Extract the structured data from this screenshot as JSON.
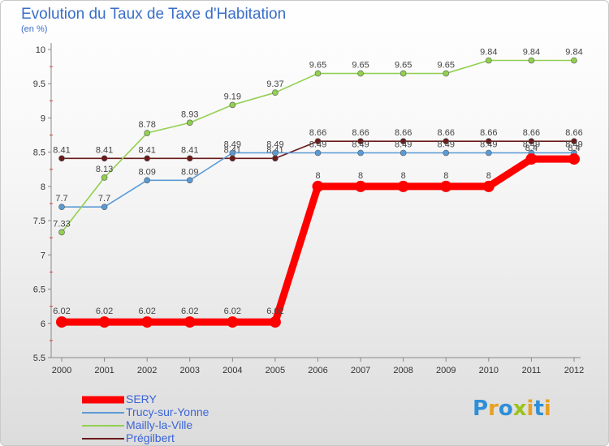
{
  "title": "Evolution du Taux de Taxe d'Habitation",
  "subtitle": "(en %)",
  "brand": {
    "text": "Proxiti",
    "letters": [
      {
        "ch": "P",
        "color": "#2f8fd8"
      },
      {
        "ch": "r",
        "color": "#e8a020"
      },
      {
        "ch": "o",
        "color": "#2f8fd8"
      },
      {
        "ch": "x",
        "color": "#9bc31c"
      },
      {
        "ch": "i",
        "color": "#e8a020"
      },
      {
        "ch": "t",
        "color": "#2f8fd8"
      },
      {
        "ch": "i",
        "color": "#e8a020"
      }
    ]
  },
  "chart_data": {
    "type": "line",
    "x": [
      2000,
      2001,
      2002,
      2003,
      2004,
      2005,
      2006,
      2007,
      2008,
      2009,
      2010,
      2011,
      2012
    ],
    "ylim": [
      5.5,
      10
    ],
    "yticks": [
      5.5,
      6,
      6.5,
      7,
      7.5,
      8,
      8.5,
      9,
      9.5,
      10
    ],
    "grid": false,
    "legend_position": "bottom-left",
    "series": [
      {
        "name": "Prégilbert",
        "color": "#6b1a1a",
        "values": [
          8.41,
          8.41,
          8.41,
          8.41,
          8.41,
          8.41,
          8.66,
          8.66,
          8.66,
          8.66,
          8.66,
          8.66,
          8.66
        ],
        "labels": [
          "8.41",
          "8.41",
          "8.41",
          "8.41",
          "8.41",
          "8.41",
          "8.66",
          "8.66",
          "8.66",
          "8.66",
          "8.66",
          "8.66",
          "8.66"
        ]
      },
      {
        "name": "Trucy-sur-Yonne",
        "color": "#5b9bd5",
        "values": [
          7.7,
          7.7,
          8.09,
          8.09,
          8.49,
          8.49,
          8.49,
          8.49,
          8.49,
          8.49,
          8.49,
          8.49,
          8.49
        ],
        "labels": [
          "7.7",
          "7.7",
          "8.09",
          "8.09",
          "8.49",
          "8.49",
          "8.49",
          "8.49",
          "8.49",
          "8.49",
          "8.49",
          "8.49",
          "8.49"
        ]
      },
      {
        "name": "Mailly-la-Ville",
        "color": "#92d050",
        "values": [
          7.33,
          8.13,
          8.78,
          8.93,
          9.19,
          9.37,
          9.65,
          9.65,
          9.65,
          9.65,
          9.84,
          9.84,
          9.84
        ],
        "labels": [
          "7.33",
          "8.13",
          "8.78",
          "8.93",
          "9.19",
          "9.37",
          "9.65",
          "9.65",
          "9.65",
          "9.65",
          "9.84",
          "9.84",
          "9.84"
        ]
      },
      {
        "name": "SERY",
        "color": "#ff0000",
        "values": [
          6.02,
          6.02,
          6.02,
          6.02,
          6.02,
          6.02,
          8,
          8,
          8,
          8,
          8,
          8.4,
          8.4
        ],
        "labels": [
          "6.02",
          "6.02",
          "6.02",
          "6.02",
          "6.02",
          "6.02",
          "8",
          "8",
          "8",
          "8",
          "8",
          "8.4",
          "8.4"
        ]
      }
    ],
    "legend": [
      {
        "name": "SERY",
        "color": "#ff0000",
        "thick": true
      },
      {
        "name": "Trucy-sur-Yonne",
        "color": "#5b9bd5",
        "thick": false
      },
      {
        "name": "Mailly-la-Ville",
        "color": "#92d050",
        "thick": false
      },
      {
        "name": "Prégilbert",
        "color": "#6b1a1a",
        "thick": false
      }
    ]
  }
}
